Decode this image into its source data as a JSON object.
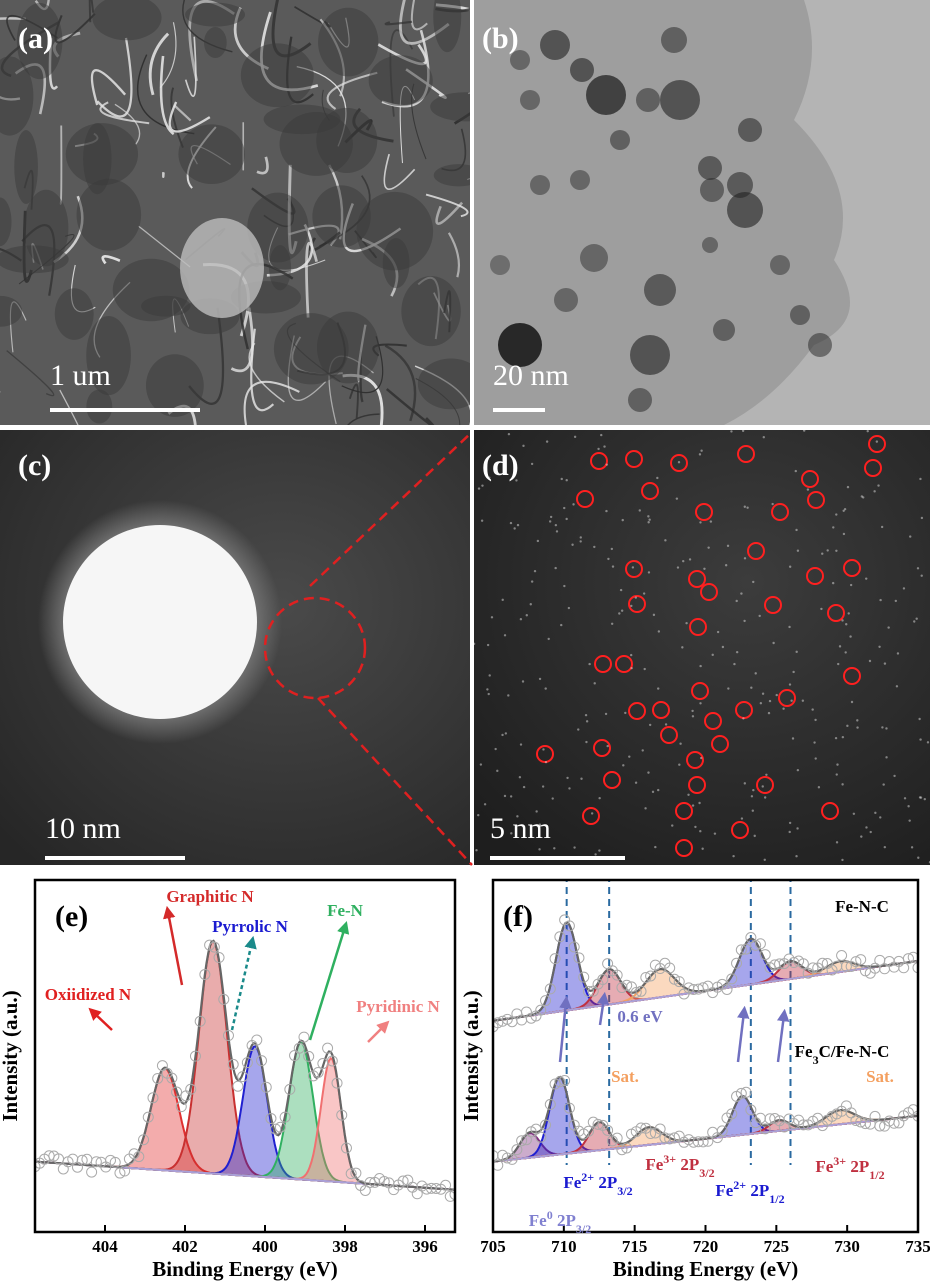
{
  "panels": [
    {
      "label": "(a)",
      "scale_bar": "1 um"
    },
    {
      "label": "(b)",
      "scale_bar": "20 nm"
    },
    {
      "label": "(c)",
      "scale_bar": "10 nm"
    },
    {
      "label": "(d)",
      "scale_bar": "5 nm"
    }
  ],
  "chart_data": [
    {
      "type": "xps",
      "label": "(e)",
      "xlabel": "Binding Energy (eV)",
      "ylabel": "Intensity (a.u.)",
      "xlim": [
        405.75,
        395.25
      ],
      "ylim": [
        0,
        1
      ],
      "xticks": [
        404,
        402,
        400,
        398,
        396
      ],
      "spectra": [
        {
          "baseline": [
            0.2,
            0.12
          ],
          "peaks": [
            {
              "center": 402.5,
              "height": 0.29,
              "width": 0.35,
              "color": "#e03030"
            },
            {
              "center": 401.3,
              "height": 0.66,
              "width": 0.35,
              "color": "#c83030"
            },
            {
              "center": 400.25,
              "height": 0.37,
              "width": 0.3,
              "color": "#2020d0"
            },
            {
              "center": 399.1,
              "height": 0.39,
              "width": 0.3,
              "color": "#30b060"
            },
            {
              "center": 398.35,
              "height": 0.35,
              "width": 0.25,
              "color": "#f07070"
            }
          ]
        }
      ],
      "annotations": [
        {
          "text": "Graphitic N",
          "color": "#d42a2a"
        },
        {
          "text": "Pyrrolic N",
          "color": "#1a1ad0"
        },
        {
          "text": "Fe-N",
          "color": "#2fb060"
        },
        {
          "text": "Oxiidized N",
          "color": "#e02020"
        },
        {
          "text": "Pyridinic N",
          "color": "#f08080"
        }
      ]
    },
    {
      "type": "xps",
      "label": "(f)",
      "xlabel": "Binding Energy (eV)",
      "ylabel": "Intensity (a.u.)",
      "xlim": [
        705,
        735
      ],
      "ylim": [
        0,
        1
      ],
      "xticks": [
        705,
        710,
        715,
        720,
        725,
        730,
        735
      ],
      "spectra": [
        {
          "baseline": [
            0.6,
            0.77
          ],
          "peaks": [
            {
              "center": 710.2,
              "height": 0.25,
              "width": 0.75,
              "color": "#2020d0"
            },
            {
              "center": 713.2,
              "height": 0.1,
              "width": 0.8,
              "color": "#c03040"
            },
            {
              "center": 716.8,
              "height": 0.08,
              "width": 1.0,
              "color": "#f4a060"
            },
            {
              "center": 723.2,
              "height": 0.13,
              "width": 0.8,
              "color": "#2020d0"
            },
            {
              "center": 726.0,
              "height": 0.05,
              "width": 0.8,
              "color": "#c03040"
            },
            {
              "center": 729.5,
              "height": 0.03,
              "width": 1.0,
              "color": "#f4a060"
            }
          ]
        },
        {
          "baseline": [
            0.2,
            0.33
          ],
          "peaks": [
            {
              "center": 707.6,
              "height": 0.07,
              "width": 0.7,
              "color": "#803080"
            },
            {
              "center": 709.7,
              "height": 0.22,
              "width": 0.7,
              "color": "#2020d0"
            },
            {
              "center": 712.5,
              "height": 0.08,
              "width": 0.7,
              "color": "#c03040"
            },
            {
              "center": 716.0,
              "height": 0.05,
              "width": 0.9,
              "color": "#f4a060"
            },
            {
              "center": 722.6,
              "height": 0.11,
              "width": 0.7,
              "color": "#2020d0"
            },
            {
              "center": 725.2,
              "height": 0.03,
              "width": 0.7,
              "color": "#c03040"
            },
            {
              "center": 729.5,
              "height": 0.04,
              "width": 1.0,
              "color": "#f4a060"
            }
          ]
        }
      ],
      "annotations": [
        {
          "text": "Fe-N-C",
          "color": "#000000"
        },
        {
          "text": "0.6 eV",
          "color": "#7070c0"
        },
        {
          "parts": [
            {
              "t": "Fe"
            },
            {
              "t": "3",
              "pos": "sub"
            },
            {
              "t": "C/Fe-N-C"
            }
          ],
          "color": "#000000"
        },
        {
          "text": "Sat.",
          "color": "#f4a060"
        },
        {
          "text": "Sat.",
          "color": "#f4a060"
        },
        {
          "parts": [
            {
              "t": "Fe"
            },
            {
              "t": "0",
              "pos": "sup"
            },
            {
              "t": " 2P"
            },
            {
              "t": "3/2",
              "pos": "sub"
            }
          ],
          "color": "#8080d0"
        },
        {
          "parts": [
            {
              "t": "Fe"
            },
            {
              "t": "2+",
              "pos": "sup"
            },
            {
              "t": " 2P"
            },
            {
              "t": "3/2",
              "pos": "sub"
            }
          ],
          "color": "#1a1ad0"
        },
        {
          "parts": [
            {
              "t": "Fe"
            },
            {
              "t": "3+",
              "pos": "sup"
            },
            {
              "t": " 2P"
            },
            {
              "t": "3/2",
              "pos": "sub"
            }
          ],
          "color": "#c03040"
        },
        {
          "parts": [
            {
              "t": "Fe"
            },
            {
              "t": "2+",
              "pos": "sup"
            },
            {
              "t": " 2P"
            },
            {
              "t": "1/2",
              "pos": "sub"
            }
          ],
          "color": "#1a1ad0"
        },
        {
          "parts": [
            {
              "t": "Fe"
            },
            {
              "t": "3+",
              "pos": "sup"
            },
            {
              "t": " 2P"
            },
            {
              "t": "1/2",
              "pos": "sub"
            }
          ],
          "color": "#c03040"
        }
      ]
    }
  ]
}
